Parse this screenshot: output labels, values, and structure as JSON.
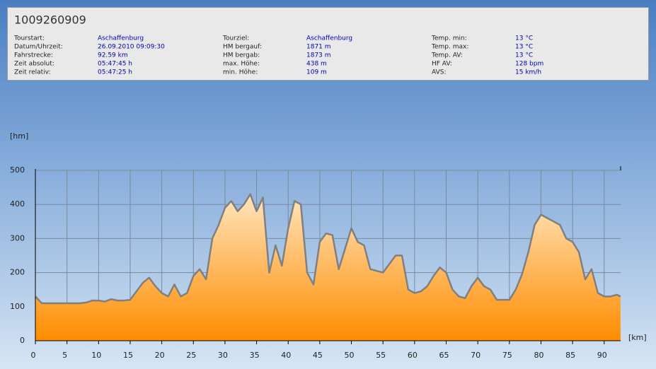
{
  "header": {
    "title": "1009260909",
    "fields": [
      {
        "label": "Tourstart:",
        "value": "Aschaffenburg"
      },
      {
        "label": "Datum/Uhrzeit:",
        "value": "26.09.2010 09:09:30"
      },
      {
        "label": "Fahrstrecke:",
        "value": "92.59 km"
      },
      {
        "label": "Zeit absolut:",
        "value": "05:47:45 h"
      },
      {
        "label": "Zeit relativ:",
        "value": "05:47:25 h"
      },
      {
        "label": "Tourziel:",
        "value": "Aschaffenburg"
      },
      {
        "label": "HM bergauf:",
        "value": "1871 m"
      },
      {
        "label": "HM bergab:",
        "value": "1873 m"
      },
      {
        "label": "max. Höhe:",
        "value": "438 m"
      },
      {
        "label": "min. Höhe:",
        "value": "109 m"
      },
      {
        "label": "Temp. min:",
        "value": "13 °C"
      },
      {
        "label": "Temp. max:",
        "value": "13 °C"
      },
      {
        "label": "Temp. AV:",
        "value": "13 °C"
      },
      {
        "label": "HF AV:",
        "value": "128 bpm"
      },
      {
        "label": "AVS:",
        "value": "15 km/h"
      }
    ]
  },
  "chart_data": {
    "type": "area",
    "y_label": "[hm]",
    "x_label": "[km]",
    "x": [
      0,
      1,
      2,
      3,
      4,
      5,
      6,
      7,
      8,
      9,
      10,
      11,
      12,
      13,
      14,
      15,
      16,
      17,
      18,
      19,
      20,
      21,
      22,
      23,
      24,
      25,
      26,
      27,
      28,
      29,
      30,
      31,
      32,
      33,
      34,
      35,
      36,
      37,
      38,
      39,
      40,
      41,
      42,
      43,
      44,
      45,
      46,
      47,
      48,
      49,
      50,
      51,
      52,
      53,
      54,
      55,
      56,
      57,
      58,
      59,
      60,
      61,
      62,
      63,
      64,
      65,
      66,
      67,
      68,
      69,
      70,
      71,
      72,
      73,
      74,
      75,
      76,
      77,
      78,
      79,
      80,
      81,
      82,
      83,
      84,
      85,
      86,
      87,
      88,
      89,
      90,
      91,
      92,
      92.59
    ],
    "series": [
      {
        "color": "#ff8c00",
        "line_color": "#808080",
        "values": [
          130,
          110,
          110,
          110,
          110,
          110,
          110,
          110,
          112,
          118,
          118,
          115,
          122,
          118,
          118,
          120,
          145,
          170,
          185,
          160,
          140,
          130,
          165,
          130,
          140,
          190,
          210,
          180,
          300,
          340,
          390,
          410,
          380,
          400,
          430,
          380,
          420,
          200,
          280,
          220,
          330,
          410,
          400,
          200,
          165,
          290,
          315,
          310,
          210,
          270,
          330,
          290,
          280,
          210,
          205,
          200,
          225,
          250,
          250,
          150,
          140,
          145,
          160,
          190,
          215,
          200,
          150,
          130,
          125,
          160,
          185,
          160,
          150,
          120,
          120,
          120,
          150,
          195,
          260,
          340,
          370,
          360,
          350,
          340,
          300,
          290,
          260,
          180,
          210,
          140,
          130,
          130,
          135,
          130
        ]
      }
    ],
    "xlim": [
      0,
      92.6
    ],
    "ylim": [
      0,
      500
    ],
    "xticks": [
      0,
      5,
      10,
      15,
      20,
      25,
      30,
      35,
      40,
      45,
      50,
      55,
      60,
      65,
      70,
      75,
      80,
      85,
      90
    ],
    "yticks": [
      0,
      100,
      200,
      300,
      400,
      500
    ],
    "grid": true
  }
}
